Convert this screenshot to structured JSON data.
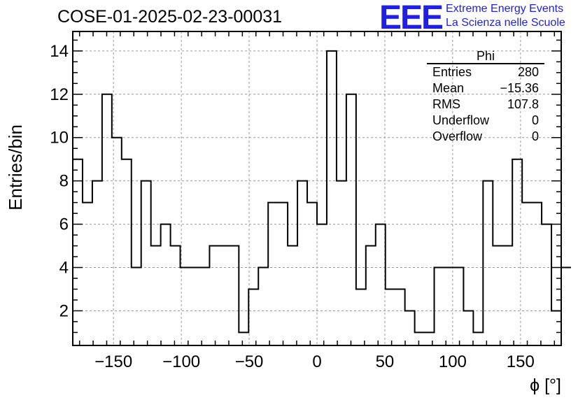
{
  "header": {
    "title": "COSE-01-2025-02-23-00031",
    "logo_text": "EEE",
    "brand_line1": "Extreme Energy Events",
    "brand_line2": "La Scienza nelle Scuole"
  },
  "stats_box": {
    "name": "Phi",
    "rows": [
      {
        "label": "Entries",
        "value": "280"
      },
      {
        "label": "Mean",
        "value": "−15.36"
      },
      {
        "label": "RMS",
        "value": "107.8"
      },
      {
        "label": "Underflow",
        "value": "0"
      },
      {
        "label": "Overflow",
        "value": "0"
      }
    ]
  },
  "chart_data": {
    "type": "histogram",
    "title": "COSE-01-2025-02-23-00031",
    "xlabel": "ϕ [°]",
    "ylabel": "Entries/bin",
    "xlim": [
      -180,
      180
    ],
    "ylim": [
      0.4,
      14.9
    ],
    "bin_width": 7.2,
    "bin_edges_start": -180,
    "values": [
      9,
      7,
      8,
      12,
      10,
      9,
      4,
      8,
      5,
      6,
      5,
      4,
      4,
      4,
      5,
      5,
      5,
      1,
      3,
      4,
      7,
      7,
      5,
      8,
      7,
      6,
      14,
      8,
      12,
      3,
      5,
      6,
      3,
      3,
      2,
      1,
      1,
      4,
      4,
      4,
      2,
      1,
      8,
      5,
      5,
      9,
      7,
      7,
      6,
      2,
      4
    ],
    "xticks": [
      -150,
      -100,
      -50,
      0,
      50,
      100,
      150
    ],
    "yticks": [
      2,
      4,
      6,
      8,
      10,
      12,
      14
    ],
    "grid": true,
    "line_color": "#000000"
  }
}
